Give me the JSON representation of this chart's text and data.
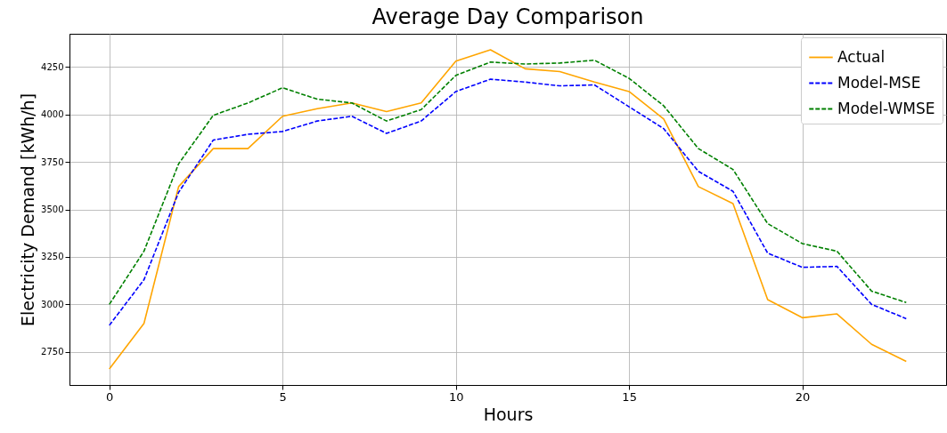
{
  "chart_data": {
    "type": "line",
    "title": "Average Day Comparison",
    "xlabel": "Hours",
    "ylabel": "Electricity Demand [kWh/h]",
    "x": [
      0,
      1,
      2,
      3,
      4,
      5,
      6,
      7,
      8,
      9,
      10,
      11,
      12,
      13,
      14,
      15,
      16,
      17,
      18,
      19,
      20,
      21,
      22,
      23
    ],
    "series": [
      {
        "name": "Actual",
        "color": "#ffa500",
        "line_style": "solid",
        "values": [
          2660,
          2900,
          3620,
          3820,
          3820,
          3990,
          4030,
          4060,
          4015,
          4060,
          4280,
          4340,
          4240,
          4225,
          4170,
          4120,
          3975,
          3620,
          3530,
          3025,
          2930,
          2950,
          2790,
          2700
        ]
      },
      {
        "name": "Model-MSE",
        "color": "#0000ff",
        "line_style": "dashed",
        "values": [
          2890,
          3130,
          3590,
          3865,
          3895,
          3910,
          3965,
          3990,
          3900,
          3965,
          4120,
          4185,
          4170,
          4150,
          4155,
          4040,
          3925,
          3700,
          3595,
          3270,
          3195,
          3200,
          3000,
          2925
        ]
      },
      {
        "name": "Model-WMSE",
        "color": "#008000",
        "line_style": "dashed",
        "values": [
          3000,
          3280,
          3740,
          3995,
          4060,
          4140,
          4080,
          4060,
          3965,
          4025,
          4205,
          4275,
          4265,
          4270,
          4285,
          4190,
          4045,
          3820,
          3710,
          3425,
          3320,
          3280,
          3070,
          3010
        ]
      }
    ],
    "xlim": [
      -1.15,
      24.15
    ],
    "xticks": [
      0,
      5,
      10,
      15,
      20
    ],
    "ylim": [
      2576,
      4424
    ],
    "yticks": [
      2750,
      3000,
      3250,
      3500,
      3750,
      4000,
      4250
    ],
    "grid": true,
    "legend": "top right"
  }
}
